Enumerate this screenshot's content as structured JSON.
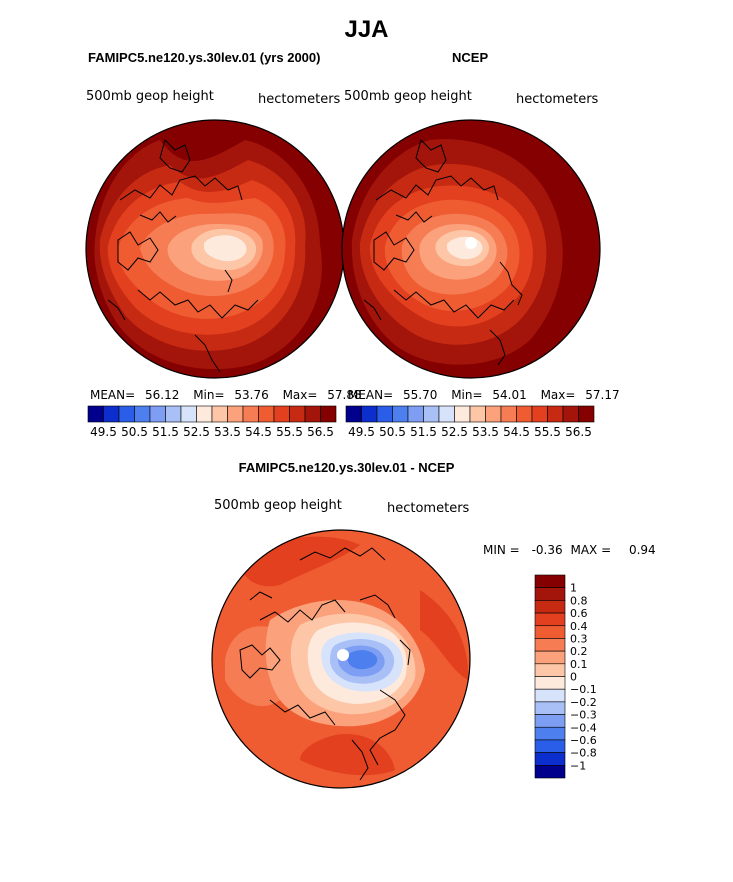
{
  "figure_title": "JJA",
  "panels": {
    "left": {
      "title": "FAMIPC5.ne120.ys.30lev.01 (yrs 2000)",
      "variable": "500mb geop height",
      "units": "hectometers",
      "stats": {
        "mean_label": "MEAN=",
        "mean": "56.12",
        "min_label": "Min=",
        "min": "53.76",
        "max_label": "Max=",
        "max": "57.88"
      }
    },
    "right": {
      "title": "NCEP",
      "variable": "500mb geop height",
      "units": "hectometers",
      "stats": {
        "mean_label": "MEAN=",
        "mean": "55.70",
        "min_label": "Min=",
        "min": "54.01",
        "max_label": "Max=",
        "max": "57.17"
      }
    },
    "diff": {
      "title": "FAMIPC5.ne120.ys.30lev.01 - NCEP",
      "variable": "500mb geop height",
      "units": "hectometers",
      "stats": {
        "min_label": "MIN =",
        "min": "-0.36",
        "max_label": "MAX =",
        "max": "0.94"
      }
    }
  },
  "colorbar_abs": {
    "labels": [
      "49.5",
      "50.5",
      "51.5",
      "52.5",
      "53.5",
      "54.5",
      "55.5",
      "56.5"
    ],
    "colors": [
      "#00008c",
      "#0b2ecc",
      "#2a5ee8",
      "#4e7fee",
      "#7d9ef2",
      "#a8c0f6",
      "#d6e3fb",
      "#fdeadd",
      "#fcc6a7",
      "#fba17b",
      "#f67c54",
      "#ef5c32",
      "#e2401f",
      "#c72a12",
      "#a3150a",
      "#850000"
    ]
  },
  "colorbar_diff": {
    "labels": [
      "1",
      "0.8",
      "0.6",
      "0.4",
      "0.3",
      "0.2",
      "0.1",
      "0",
      "−0.1",
      "−0.2",
      "−0.3",
      "−0.4",
      "−0.6",
      "−0.8",
      "−1"
    ],
    "colors": [
      "#850000",
      "#a3150a",
      "#c72a12",
      "#e2401f",
      "#ef5c32",
      "#f67c54",
      "#fba17b",
      "#fcc6a7",
      "#fdeadd",
      "#d6e3fb",
      "#a8c0f6",
      "#7d9ef2",
      "#4e7fee",
      "#2a5ee8",
      "#0b2ecc",
      "#00008c"
    ]
  },
  "map_colors": {
    "c0": "#850000",
    "c1": "#a3150a",
    "c2": "#c72a12",
    "c3": "#e2401f",
    "c4": "#ef5c32",
    "c5": "#f67c54",
    "c6": "#fba17b",
    "c7": "#fcc6a7",
    "c8": "#fdeadd",
    "white": "#ffffff",
    "b1": "#d6e3fb",
    "b2": "#a8c0f6",
    "b3": "#7d9ef2",
    "b4": "#4e7fee",
    "b5": "#2a5ee8"
  }
}
